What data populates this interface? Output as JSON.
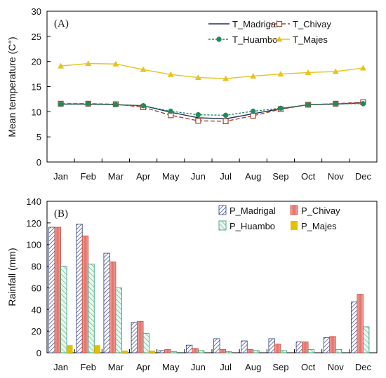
{
  "chart_data": [
    {
      "type": "line",
      "panel_label": "(A)",
      "ylabel": "Mean temperature (C°)",
      "xlabel": "",
      "ylim": [
        0,
        30
      ],
      "yticks": [
        0,
        5,
        10,
        15,
        20,
        25,
        30
      ],
      "categories": [
        "Jan",
        "Feb",
        "Mar",
        "Apr",
        "May",
        "Jun",
        "Jul",
        "Aug",
        "Sep",
        "Oct",
        "Nov",
        "Dec"
      ],
      "grid": false,
      "legend_position": "top-right",
      "series": [
        {
          "name": "T_Madrigal",
          "color": "#1f2f5e",
          "style": "solid",
          "marker": "none",
          "values": [
            11.5,
            11.5,
            11.4,
            11.2,
            9.9,
            8.8,
            8.6,
            9.6,
            10.6,
            11.4,
            11.5,
            11.8
          ]
        },
        {
          "name": "T_Chivay",
          "color": "#a0442f",
          "style": "dashed",
          "marker": "square",
          "values": [
            11.6,
            11.6,
            11.5,
            10.9,
            9.3,
            8.2,
            8.1,
            9.2,
            10.5,
            11.4,
            11.6,
            11.9
          ]
        },
        {
          "name": "T_Huambo",
          "color": "#1f8a5b",
          "style": "dotted",
          "marker": "circle",
          "values": [
            11.5,
            11.6,
            11.4,
            11.2,
            10.1,
            9.4,
            9.3,
            10.1,
            10.7,
            11.4,
            11.6,
            11.6
          ]
        },
        {
          "name": "T_Majes",
          "color": "#e6c31e",
          "style": "solid",
          "marker": "triangle",
          "values": [
            19.1,
            19.6,
            19.5,
            18.4,
            17.4,
            16.8,
            16.6,
            17.1,
            17.5,
            17.8,
            18.0,
            18.7
          ]
        }
      ]
    },
    {
      "type": "bar",
      "panel_label": "(B)",
      "ylabel": "Rainfall (mm)",
      "xlabel": "",
      "ylim": [
        0,
        140
      ],
      "yticks": [
        0,
        20,
        40,
        60,
        80,
        100,
        120,
        140
      ],
      "categories": [
        "Jan",
        "Feb",
        "Mar",
        "Apr",
        "May",
        "Jun",
        "Jul",
        "Aug",
        "Sep",
        "Oct",
        "Nov",
        "Dec"
      ],
      "grid": false,
      "legend_position": "top-right",
      "series": [
        {
          "name": "P_Madrigal",
          "color": "#2f3f7f",
          "fill": "hatch-diag",
          "values": [
            116,
            119,
            92,
            28,
            2,
            7,
            13,
            11,
            13,
            10,
            14,
            47
          ]
        },
        {
          "name": "P_Chivay",
          "color": "#c9453a",
          "fill": "salmon",
          "values": [
            116,
            108,
            84,
            29,
            3,
            4,
            3,
            3,
            8,
            10,
            15,
            54
          ]
        },
        {
          "name": "P_Huambo",
          "color": "#2a9a6a",
          "fill": "hatch-green",
          "values": [
            80,
            82,
            60,
            18,
            1,
            2,
            1,
            2,
            2,
            3,
            3,
            24
          ]
        },
        {
          "name": "P_Majes",
          "color": "#e3c000",
          "fill": "yellow",
          "values": [
            7,
            7,
            2,
            2,
            0,
            0,
            0,
            0,
            0,
            0,
            0,
            0
          ]
        }
      ]
    }
  ]
}
